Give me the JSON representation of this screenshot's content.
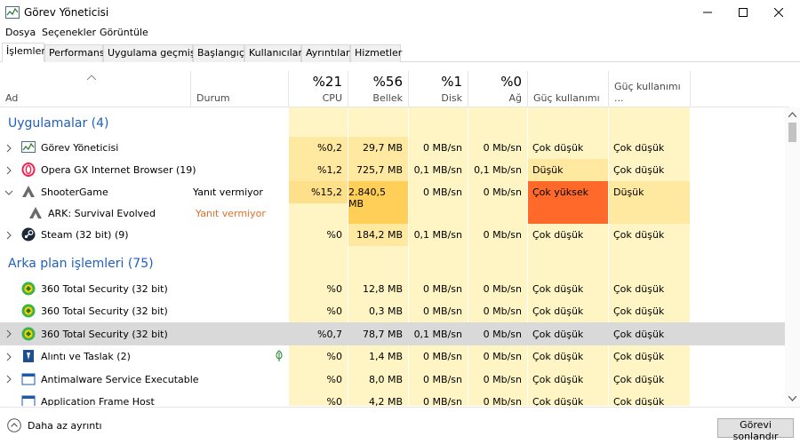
{
  "window": {
    "title": "Görev Yöneticisi"
  },
  "menu": [
    "Dosya",
    "Seçenekler",
    "Görüntüle"
  ],
  "tabs": [
    "İşlemler",
    "Performans",
    "Uygulama geçmişi",
    "Başlangıç",
    "Kullanıcılar",
    "Ayrıntılar",
    "Hizmetler"
  ],
  "header": {
    "name": "Ad",
    "status": "Durum",
    "cpu_pct": "%21",
    "cpu": "CPU",
    "mem_pct": "%56",
    "mem": "Bellek",
    "disk_pct": "%1",
    "disk": "Disk",
    "net_pct": "%0",
    "net": "Ağ",
    "power": "Güç kullanımı",
    "power_trend": "Güç kullanımı ..."
  },
  "groups": {
    "apps": "Uygulamalar (4)",
    "bg": "Arka plan işlemleri (75)"
  },
  "rows": [
    {
      "name": "Görev Yöneticisi",
      "status": "",
      "cpu": "%0,2",
      "mem": "29,7 MB",
      "disk": "0 MB/sn",
      "net": "0 Mb/sn",
      "power": "Çok düşük",
      "trend": "Çok düşük"
    },
    {
      "name": "Opera GX Internet Browser (19)",
      "status": "",
      "cpu": "%1,2",
      "mem": "725,7 MB",
      "disk": "0,1 MB/sn",
      "net": "0,1 Mb/sn",
      "power": "Düşük",
      "trend": "Çok düşük"
    },
    {
      "name": "ShooterGame",
      "status": "Yanıt vermiyor",
      "cpu": "%15,2",
      "mem": "2.840,5 MB",
      "disk": "0 MB/sn",
      "net": "0 Mb/sn",
      "power": "Çok yüksek",
      "trend": "Düşük"
    },
    {
      "name": "ARK: Survival Evolved",
      "status": "Yanıt vermiyor"
    },
    {
      "name": "Steam (32 bit) (9)",
      "status": "",
      "cpu": "%0",
      "mem": "184,2 MB",
      "disk": "0,1 MB/sn",
      "net": "0 Mb/sn",
      "power": "Çok düşük",
      "trend": "Çok düşük"
    },
    {
      "name": "360 Total Security (32 bit)",
      "status": "",
      "cpu": "%0",
      "mem": "12,8 MB",
      "disk": "0 MB/sn",
      "net": "0 Mb/sn",
      "power": "Çok düşük",
      "trend": "Çok düşük"
    },
    {
      "name": "360 Total Security (32 bit)",
      "status": "",
      "cpu": "%0",
      "mem": "0,3 MB",
      "disk": "0 MB/sn",
      "net": "0 Mb/sn",
      "power": "Çok düşük",
      "trend": "Çok düşük"
    },
    {
      "name": "360 Total Security (32 bit)",
      "status": "",
      "cpu": "%0,7",
      "mem": "78,7 MB",
      "disk": "0,1 MB/sn",
      "net": "0 Mb/sn",
      "power": "Çok düşük",
      "trend": "Çok düşük"
    },
    {
      "name": "Alıntı ve Taslak (2)",
      "status": "",
      "cpu": "%0",
      "mem": "1,4 MB",
      "disk": "0 MB/sn",
      "net": "0 Mb/sn",
      "power": "Çok düşük",
      "trend": "Çok düşük"
    },
    {
      "name": "Antimalware Service Executable",
      "status": "",
      "cpu": "%0",
      "mem": "8,0 MB",
      "disk": "0 MB/sn",
      "net": "0 Mb/sn",
      "power": "Çok düşük",
      "trend": "Çok düşük"
    },
    {
      "name": "Application Frame Host",
      "status": "",
      "cpu": "%0",
      "mem": "4,2 MB",
      "disk": "0 MB/sn",
      "net": "0 Mb/sn",
      "power": "Çok düşük",
      "trend": "Çok düşük"
    }
  ],
  "footer": {
    "less": "Daha az ayrıntı",
    "end_task": "Görevi sonlandır"
  },
  "colors": {
    "heat_light": "#fff4c4",
    "heat_mid": "#ffe8a0",
    "heat_high": "#ffd66a",
    "heat_hot": "#ff6a2a",
    "link_blue": "#1f5fbd",
    "not_responding": "#e06f2c"
  }
}
